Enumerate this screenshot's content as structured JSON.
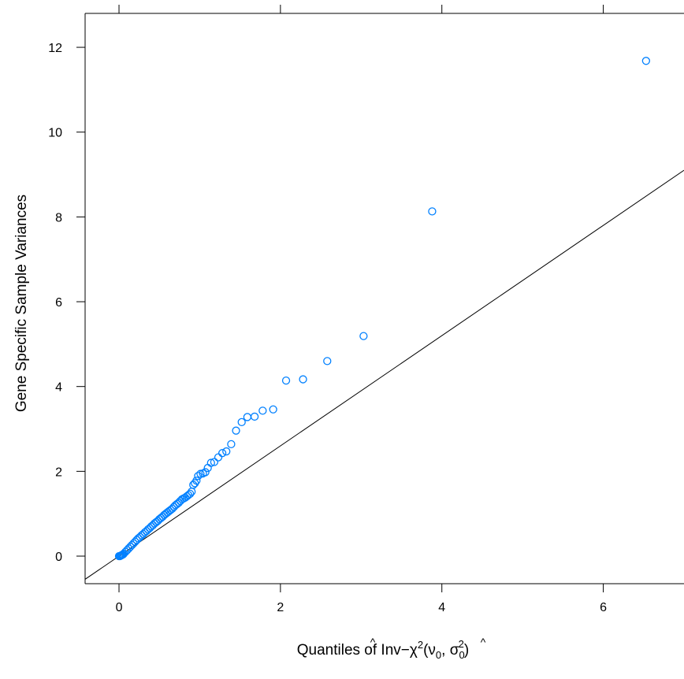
{
  "chart_data": {
    "type": "scatter",
    "xlabel": {
      "prefix": "Quantiles of Inv−χ",
      "chi_sup": "2",
      "open_paren": "(",
      "nu": "ν",
      "hat": "^",
      "sub0": "0",
      "comma": ", ",
      "sigma": "σ",
      "sigma_sup": "2",
      "close_paren": ")"
    },
    "ylabel": "Gene Specific Sample Variances",
    "xlim": [
      -0.42,
      7.0
    ],
    "ylim": [
      -0.65,
      12.8
    ],
    "xticks": [
      0,
      2,
      4,
      6
    ],
    "xticks_top": [
      0,
      2,
      4,
      6
    ],
    "yticks": [
      0,
      2,
      4,
      6,
      8,
      10,
      12
    ],
    "point_color": "#0080ff",
    "line_color": "#000000",
    "reference_line": {
      "intercept": 0.0,
      "slope": 1.3
    },
    "points": [
      [
        6.53,
        11.68
      ],
      [
        3.88,
        8.13
      ],
      [
        3.03,
        5.19
      ],
      [
        2.58,
        4.6
      ],
      [
        2.28,
        4.17
      ],
      [
        2.07,
        4.14
      ],
      [
        1.91,
        3.46
      ],
      [
        1.78,
        3.43
      ],
      [
        1.68,
        3.29
      ],
      [
        1.59,
        3.28
      ],
      [
        1.52,
        3.16
      ],
      [
        1.45,
        2.96
      ],
      [
        1.39,
        2.64
      ],
      [
        1.33,
        2.47
      ],
      [
        1.28,
        2.43
      ],
      [
        1.23,
        2.33
      ],
      [
        1.18,
        2.22
      ],
      [
        1.14,
        2.2
      ],
      [
        1.1,
        2.08
      ],
      [
        1.07,
        1.98
      ],
      [
        1.04,
        1.95
      ],
      [
        1.01,
        1.94
      ],
      [
        0.98,
        1.89
      ],
      [
        0.96,
        1.78
      ],
      [
        0.94,
        1.72
      ],
      [
        0.92,
        1.68
      ],
      [
        0.9,
        1.52
      ],
      [
        0.88,
        1.47
      ],
      [
        0.86,
        1.44
      ],
      [
        0.84,
        1.41
      ],
      [
        0.82,
        1.38
      ],
      [
        0.8,
        1.36
      ],
      [
        0.78,
        1.34
      ],
      [
        0.76,
        1.3
      ],
      [
        0.74,
        1.26
      ],
      [
        0.72,
        1.23
      ],
      [
        0.7,
        1.2
      ],
      [
        0.68,
        1.16
      ],
      [
        0.66,
        1.12
      ],
      [
        0.64,
        1.09
      ],
      [
        0.62,
        1.06
      ],
      [
        0.6,
        1.03
      ],
      [
        0.58,
        1.0
      ],
      [
        0.56,
        0.97
      ],
      [
        0.54,
        0.93
      ],
      [
        0.52,
        0.9
      ],
      [
        0.5,
        0.87
      ],
      [
        0.48,
        0.83
      ],
      [
        0.46,
        0.8
      ],
      [
        0.44,
        0.77
      ],
      [
        0.42,
        0.73
      ],
      [
        0.4,
        0.7
      ],
      [
        0.38,
        0.66
      ],
      [
        0.36,
        0.63
      ],
      [
        0.34,
        0.59
      ],
      [
        0.32,
        0.56
      ],
      [
        0.3,
        0.52
      ],
      [
        0.28,
        0.49
      ],
      [
        0.26,
        0.45
      ],
      [
        0.24,
        0.42
      ],
      [
        0.22,
        0.38
      ],
      [
        0.2,
        0.34
      ],
      [
        0.18,
        0.3
      ],
      [
        0.16,
        0.26
      ],
      [
        0.14,
        0.22
      ],
      [
        0.12,
        0.18
      ],
      [
        0.1,
        0.14
      ],
      [
        0.08,
        0.1
      ],
      [
        0.06,
        0.06
      ],
      [
        0.05,
        0.04
      ],
      [
        0.04,
        0.03
      ],
      [
        0.03,
        0.02
      ],
      [
        0.02,
        0.01
      ],
      [
        0.01,
        0.0
      ],
      [
        0.0,
        0.0
      ]
    ]
  }
}
